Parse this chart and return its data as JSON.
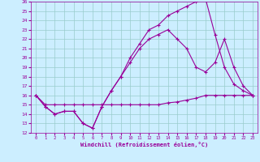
{
  "xlabel": "Windchill (Refroidissement éolien,°C)",
  "xlim": [
    -0.5,
    23.5
  ],
  "ylim": [
    12,
    26
  ],
  "xticks": [
    0,
    1,
    2,
    3,
    4,
    5,
    6,
    7,
    8,
    9,
    10,
    11,
    12,
    13,
    14,
    15,
    16,
    17,
    18,
    19,
    20,
    21,
    22,
    23
  ],
  "yticks": [
    12,
    13,
    14,
    15,
    16,
    17,
    18,
    19,
    20,
    21,
    22,
    23,
    24,
    25,
    26
  ],
  "bg_color": "#cceeff",
  "line_color": "#990099",
  "grid_color": "#99cccc",
  "curve1_x": [
    0,
    1,
    2,
    3,
    4,
    5,
    6,
    7,
    8,
    9,
    10,
    11,
    12,
    13,
    14,
    15,
    16,
    17,
    18,
    19,
    20,
    21,
    22,
    23
  ],
  "curve1_y": [
    16.0,
    15.0,
    15.0,
    15.0,
    15.0,
    15.0,
    15.0,
    15.0,
    15.0,
    15.0,
    15.0,
    15.0,
    15.0,
    15.0,
    15.2,
    15.3,
    15.5,
    15.7,
    16.0,
    16.0,
    16.0,
    16.0,
    16.0,
    16.0
  ],
  "curve2_x": [
    0,
    1,
    2,
    3,
    4,
    5,
    6,
    7,
    8,
    9,
    10,
    11,
    12,
    13,
    14,
    15,
    16,
    17,
    18,
    19,
    20,
    21,
    22,
    23
  ],
  "curve2_y": [
    16.0,
    14.8,
    14.0,
    14.3,
    14.3,
    13.0,
    12.5,
    14.8,
    16.5,
    18.0,
    19.5,
    21.0,
    22.0,
    22.5,
    23.0,
    22.0,
    21.0,
    19.0,
    18.5,
    19.5,
    22.0,
    19.0,
    17.0,
    16.0
  ],
  "curve3_x": [
    0,
    1,
    2,
    3,
    4,
    5,
    6,
    7,
    8,
    9,
    10,
    11,
    12,
    13,
    14,
    15,
    16,
    17,
    18,
    19,
    20,
    21,
    22,
    23
  ],
  "curve3_y": [
    16.0,
    14.8,
    14.0,
    14.3,
    14.3,
    13.0,
    12.5,
    14.8,
    16.5,
    18.0,
    20.0,
    21.5,
    23.0,
    23.5,
    24.5,
    25.0,
    25.5,
    26.0,
    26.3,
    22.5,
    19.0,
    17.2,
    16.5,
    16.0
  ]
}
